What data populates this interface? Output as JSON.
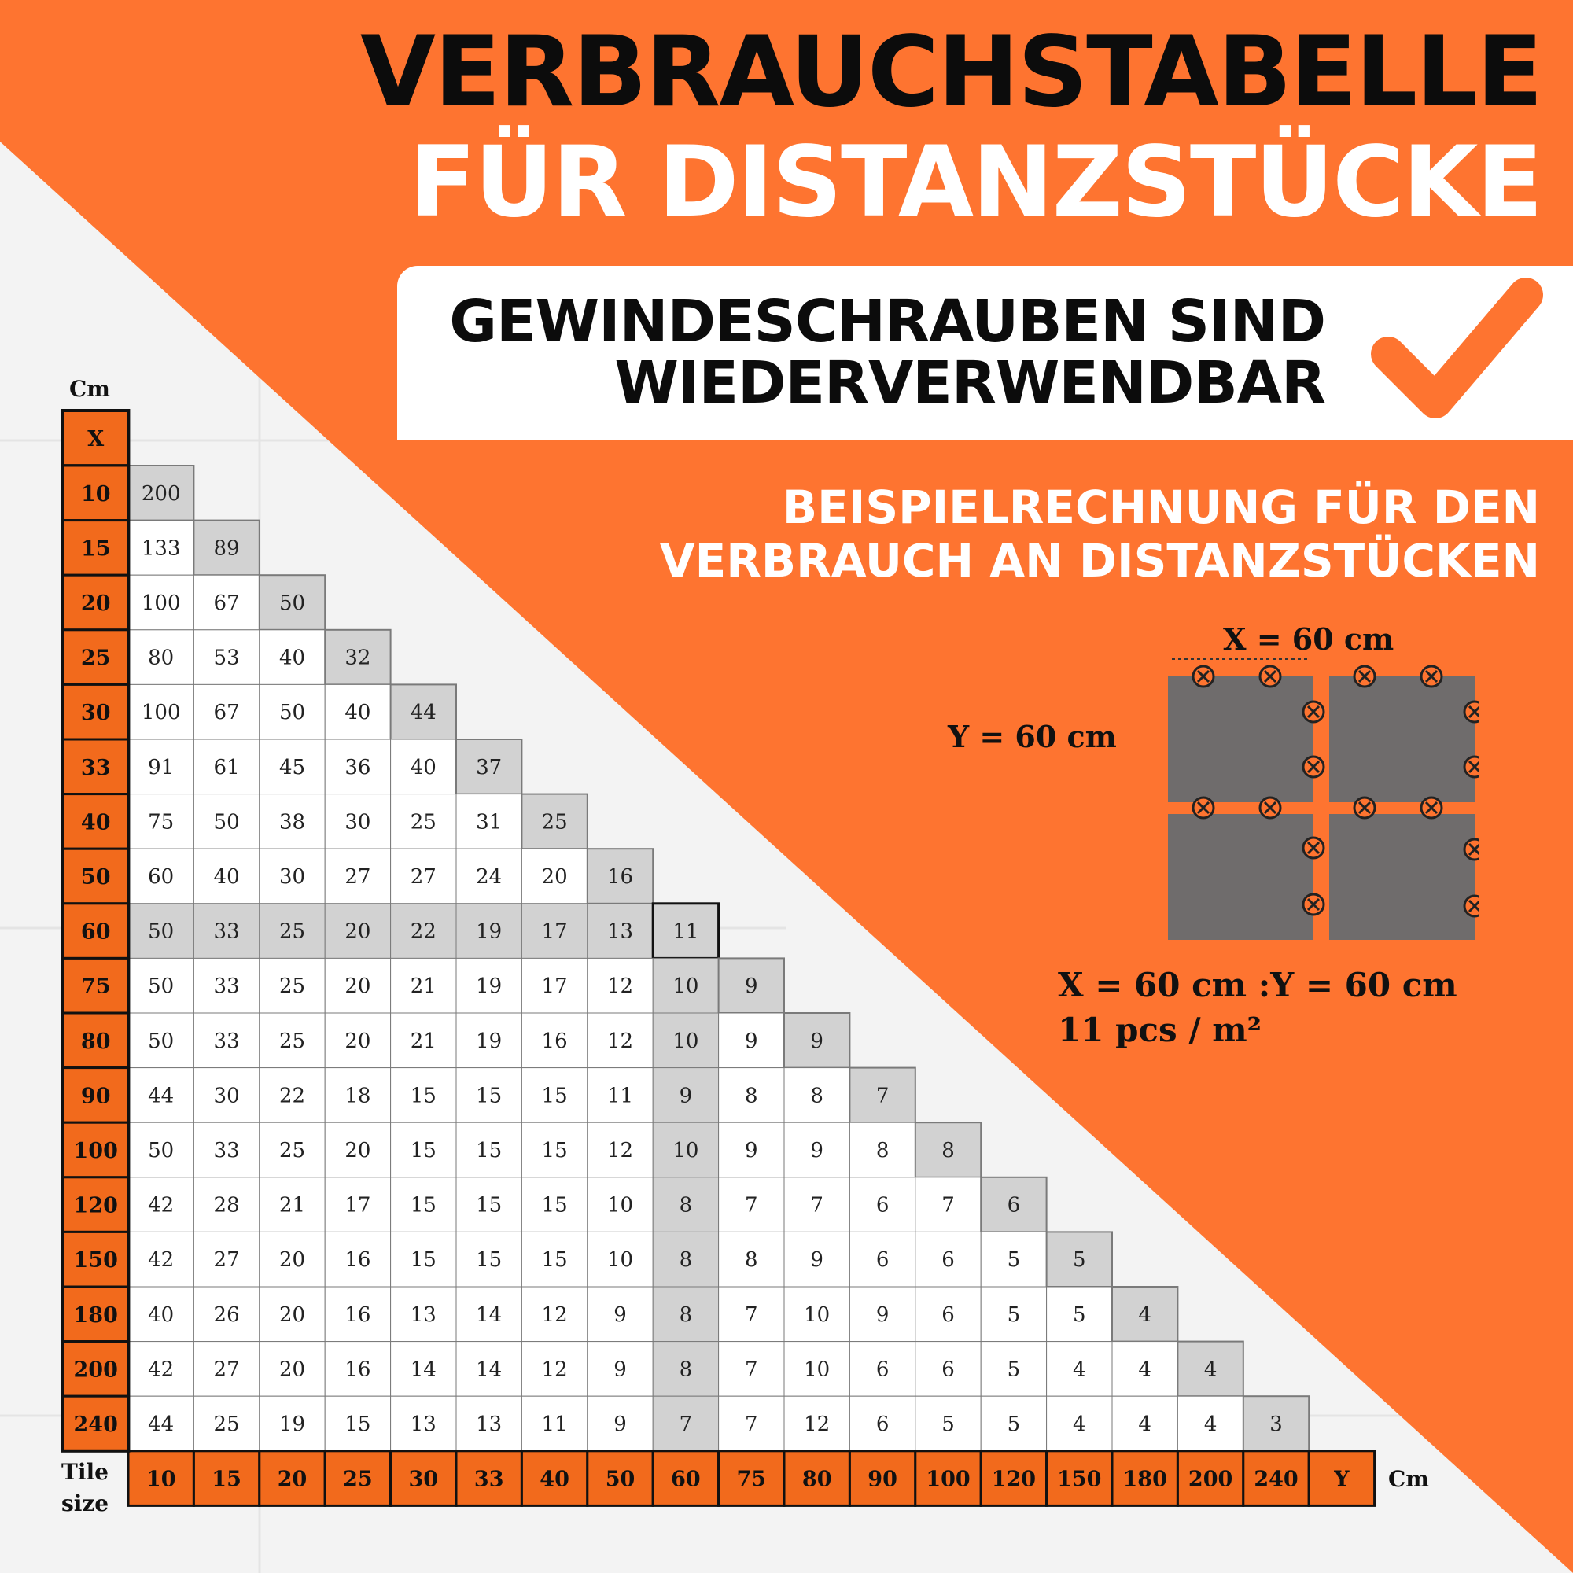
{
  "header": {
    "title_line1": "VERBRAUCHSTABELLE",
    "title_line2": "FÜR DISTANZSTÜCKE"
  },
  "banner": {
    "line1": "GEWINDESCHRAUBEN SIND",
    "line2": "WIEDERVERWENDBAR",
    "check_icon": "checkmark-icon"
  },
  "example": {
    "line1": "BEISPIELRECHNUNG FÜR DEN",
    "line2": "VERBRAUCH AN DISTANZSTÜCKEN",
    "x_label": "X = 60 cm",
    "y_label": "Y = 60 cm",
    "result_line1": "X = 60 cm :Y = 60 cm",
    "result_line2": "11 pcs / m²"
  },
  "table": {
    "cm_top": "Cm",
    "cm_right": "Cm",
    "tile_size_label": "Tile size",
    "x_header": "X",
    "y_header": "Y",
    "row_headers": [
      "10",
      "15",
      "20",
      "25",
      "30",
      "33",
      "40",
      "50",
      "60",
      "75",
      "80",
      "90",
      "100",
      "120",
      "150",
      "180",
      "200",
      "240"
    ],
    "col_headers": [
      "10",
      "15",
      "20",
      "25",
      "30",
      "33",
      "40",
      "50",
      "60",
      "75",
      "80",
      "90",
      "100",
      "120",
      "150",
      "180",
      "200",
      "240"
    ],
    "rows": [
      [
        "200"
      ],
      [
        "133",
        "89"
      ],
      [
        "100",
        "67",
        "50"
      ],
      [
        "80",
        "53",
        "40",
        "32"
      ],
      [
        "100",
        "67",
        "50",
        "40",
        "44"
      ],
      [
        "91",
        "61",
        "45",
        "36",
        "40",
        "37"
      ],
      [
        "75",
        "50",
        "38",
        "30",
        "25",
        "31",
        "25"
      ],
      [
        "60",
        "40",
        "30",
        "27",
        "27",
        "24",
        "20",
        "16"
      ],
      [
        "50",
        "33",
        "25",
        "20",
        "22",
        "19",
        "17",
        "13",
        "11"
      ],
      [
        "50",
        "33",
        "25",
        "20",
        "21",
        "19",
        "17",
        "12",
        "10",
        "9"
      ],
      [
        "50",
        "33",
        "25",
        "20",
        "21",
        "19",
        "16",
        "12",
        "10",
        "9",
        "9"
      ],
      [
        "44",
        "30",
        "22",
        "18",
        "15",
        "15",
        "15",
        "11",
        "9",
        "8",
        "8",
        "7"
      ],
      [
        "50",
        "33",
        "25",
        "20",
        "15",
        "15",
        "15",
        "12",
        "10",
        "9",
        "9",
        "8",
        "8"
      ],
      [
        "42",
        "28",
        "21",
        "17",
        "15",
        "15",
        "15",
        "10",
        "8",
        "7",
        "7",
        "6",
        "7",
        "6"
      ],
      [
        "42",
        "27",
        "20",
        "16",
        "15",
        "15",
        "15",
        "10",
        "8",
        "8",
        "9",
        "6",
        "6",
        "5",
        "5"
      ],
      [
        "40",
        "26",
        "20",
        "16",
        "13",
        "14",
        "12",
        "9",
        "8",
        "7",
        "10",
        "9",
        "6",
        "5",
        "5",
        "4"
      ],
      [
        "42",
        "27",
        "20",
        "16",
        "14",
        "14",
        "12",
        "9",
        "8",
        "7",
        "10",
        "6",
        "6",
        "5",
        "4",
        "4",
        "4"
      ],
      [
        "44",
        "25",
        "19",
        "15",
        "13",
        "13",
        "11",
        "9",
        "7",
        "7",
        "12",
        "6",
        "5",
        "5",
        "4",
        "4",
        "4",
        "3"
      ]
    ]
  },
  "colors": {
    "accent": "#fe7430",
    "header_cell": "#f26a1c",
    "shade": "#d2d2d2",
    "tile": "#6f6c6c",
    "dark": "#0c0c0c"
  }
}
